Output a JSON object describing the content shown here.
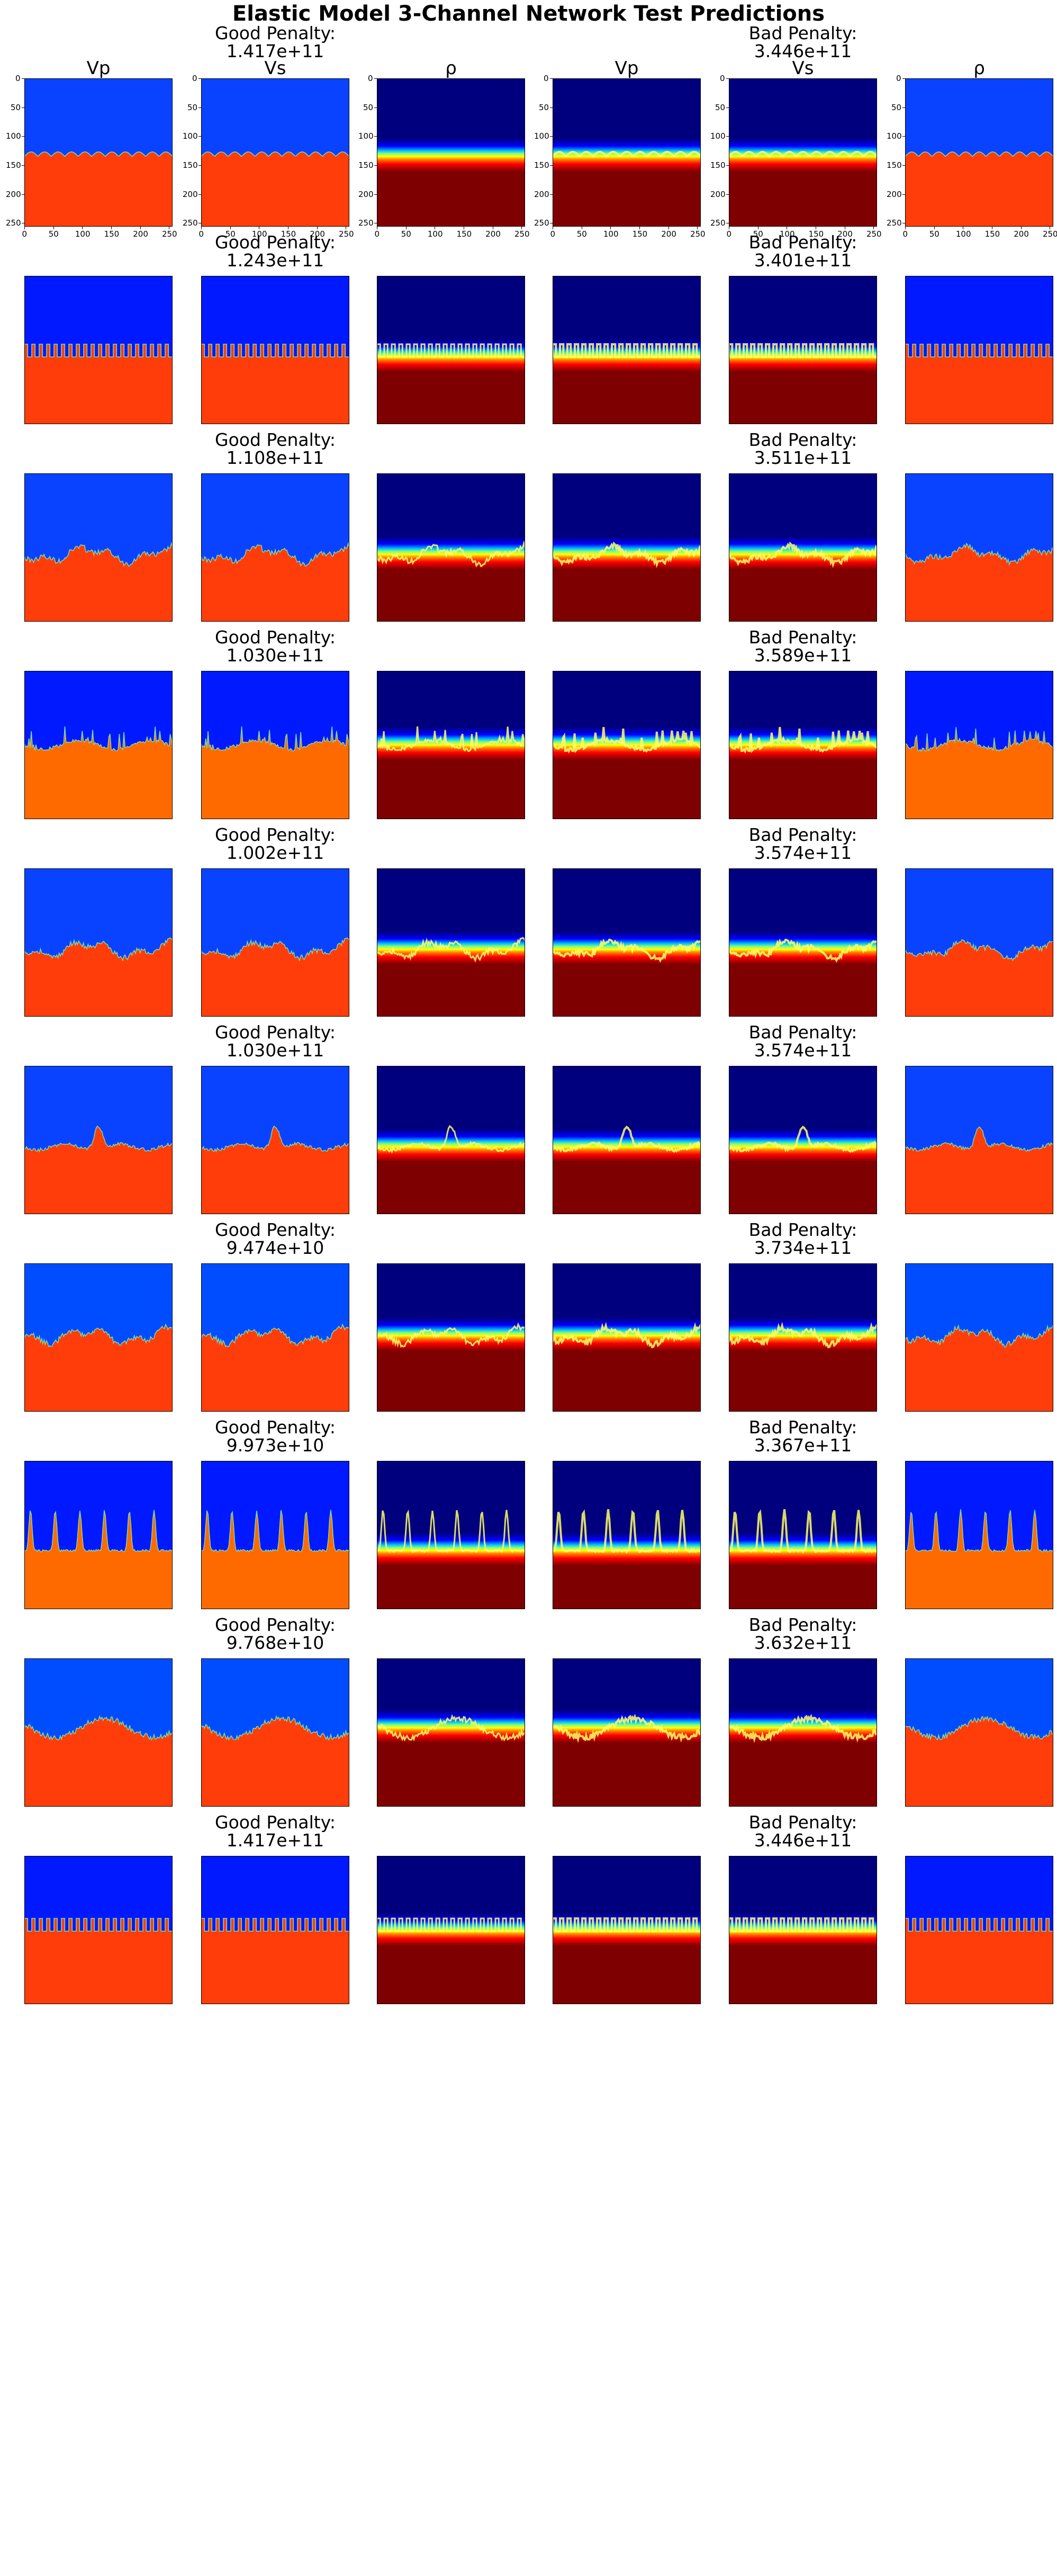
{
  "figure": {
    "title": "Elastic Model 3-Channel Network Test Predictions",
    "column_titles": [
      "Vp",
      "Vs",
      "ρ",
      "Vp",
      "Vs",
      "ρ"
    ]
  },
  "penalty_labels": {
    "good": "Good Penalty:",
    "bad": "Bad Penalty:"
  },
  "colors": {
    "vel_top_1": "#0a43ff",
    "vel_top_2": "#0019ff",
    "vel_top_3": "#004dff",
    "vel_bottom_1": "#ff3d0a",
    "vel_bottom_2": "#ff6a00",
    "density_top": "#00007f",
    "density_bottom": "#7f0000"
  },
  "axes": {
    "x_ticks": [
      "0",
      "50",
      "100",
      "150",
      "200",
      "250"
    ],
    "y_ticks": [
      "0",
      "50",
      "100",
      "150",
      "200",
      "250"
    ]
  },
  "chart_data": {
    "type": "heatmap",
    "title": "Elastic Model 3-Channel Network Test Predictions",
    "colormap": "jet",
    "grid_size": [
      256,
      256
    ],
    "xlim": [
      0,
      256
    ],
    "ylim": [
      256,
      0
    ],
    "columns": [
      "Vp",
      "Vs",
      "ρ",
      "Vp",
      "Vs",
      "ρ"
    ],
    "rows": [
      {
        "good_penalty": "1.417e+11",
        "bad_penalty": "3.446e+11",
        "interface_depth": 135,
        "interface_style": "bumps",
        "top_color": "vel_top_1",
        "bottom_color": "vel_bottom_1"
      },
      {
        "good_penalty": "1.243e+11",
        "bad_penalty": "3.401e+11",
        "interface_depth": 140,
        "interface_style": "square",
        "top_color": "vel_top_2",
        "bottom_color": "vel_bottom_1"
      },
      {
        "good_penalty": "1.108e+11",
        "bad_penalty": "3.511e+11",
        "interface_depth": 140,
        "interface_style": "rough",
        "top_color": "vel_top_1",
        "bottom_color": "vel_bottom_1"
      },
      {
        "good_penalty": "1.030e+11",
        "bad_penalty": "3.589e+11",
        "interface_depth": 128,
        "interface_style": "spikes",
        "top_color": "vel_top_2",
        "bottom_color": "vel_bottom_2"
      },
      {
        "good_penalty": "1.002e+11",
        "bad_penalty": "3.574e+11",
        "interface_depth": 140,
        "interface_style": "rough",
        "top_color": "vel_top_1",
        "bottom_color": "vel_bottom_1"
      },
      {
        "good_penalty": "1.030e+11",
        "bad_penalty": "3.574e+11",
        "interface_depth": 140,
        "interface_style": "hill",
        "top_color": "vel_top_1",
        "bottom_color": "vel_bottom_1"
      },
      {
        "good_penalty": "9.474e+10",
        "bad_penalty": "3.734e+11",
        "interface_depth": 125,
        "interface_style": "rough",
        "top_color": "vel_top_3",
        "bottom_color": "vel_bottom_1"
      },
      {
        "good_penalty": "9.973e+10",
        "bad_penalty": "3.367e+11",
        "interface_depth": 155,
        "interface_style": "tallspikes",
        "top_color": "vel_top_2",
        "bottom_color": "vel_bottom_2"
      },
      {
        "good_penalty": "9.768e+10",
        "bad_penalty": "3.632e+11",
        "interface_depth": 120,
        "interface_style": "valley",
        "top_color": "vel_top_3",
        "bottom_color": "vel_bottom_1"
      },
      {
        "good_penalty": "1.417e+11",
        "bad_penalty": "3.446e+11",
        "interface_depth": 130,
        "interface_style": "square",
        "top_color": "vel_top_2",
        "bottom_color": "vel_bottom_1"
      }
    ]
  }
}
